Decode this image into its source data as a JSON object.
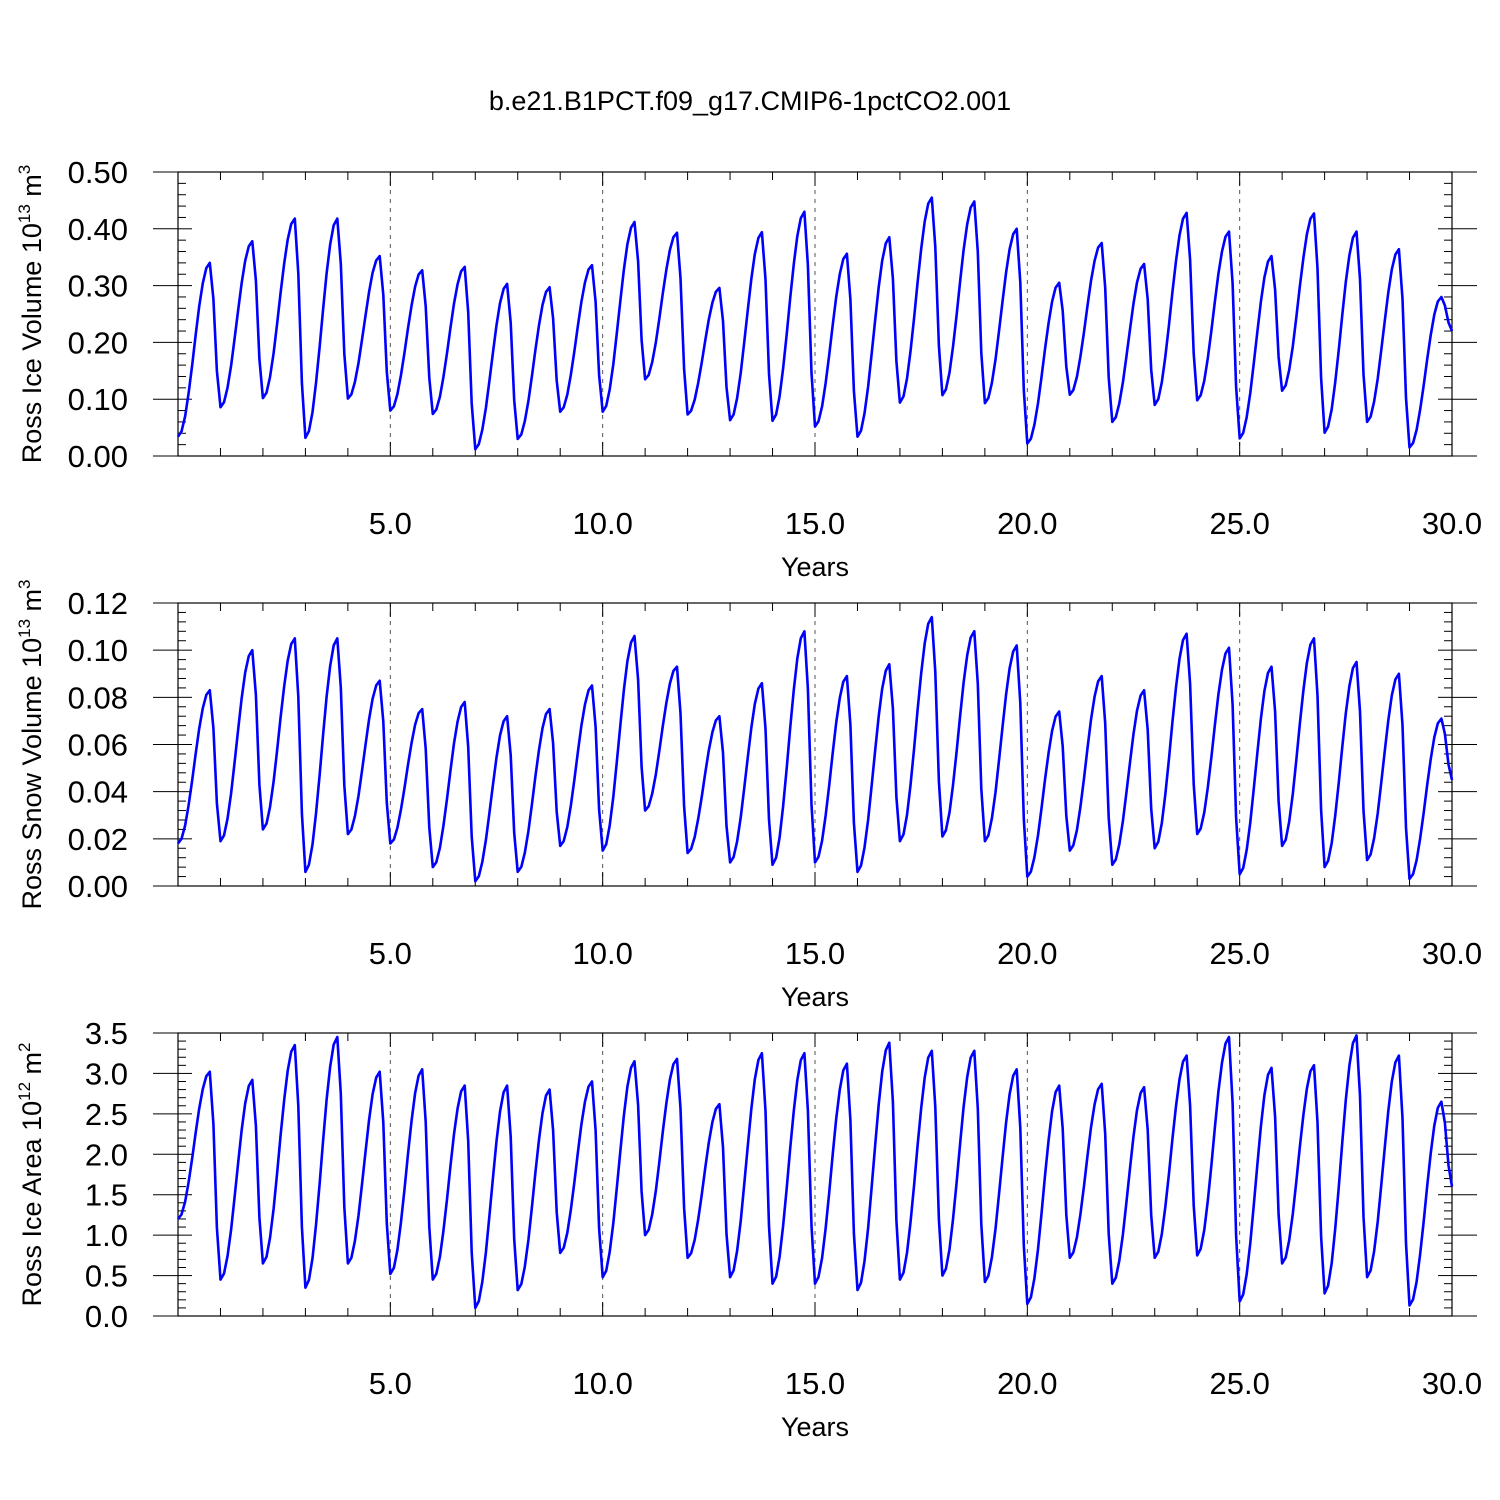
{
  "title": "b.e21.B1PCT.f09_g17.CMIP6-1pctCO2.001",
  "colors": {
    "line": "#0000ff",
    "axis": "#000000",
    "refline": "#555555"
  },
  "chart_data": [
    {
      "type": "line",
      "ylabel": "Ross Ice Volume 10",
      "ylabel_exp": "13",
      "ylabel_unit": " m",
      "ylabel_unit_exp": "3",
      "xlabel": "Years",
      "xlim": [
        0,
        30
      ],
      "ylim": [
        0,
        0.5
      ],
      "xticks": [
        5,
        10,
        15,
        20,
        25,
        30
      ],
      "xtick_labels": [
        "5.0",
        "10.0",
        "15.0",
        "20.0",
        "25.0",
        "30.0"
      ],
      "yticks": [
        0,
        0.1,
        0.2,
        0.3,
        0.4,
        0.5
      ],
      "ytick_labels": [
        "0.00",
        "0.10",
        "0.20",
        "0.30",
        "0.40",
        "0.50"
      ],
      "vlines": [
        5,
        10,
        15,
        20,
        25
      ],
      "grid": false,
      "series": [
        {
          "peaks": [
            0.34,
            0.378,
            0.418,
            0.418,
            0.352,
            0.327,
            0.333,
            0.303,
            0.297,
            0.336,
            0.412,
            0.393,
            0.296,
            0.394,
            0.43,
            0.356,
            0.385,
            0.455,
            0.448,
            0.4,
            0.305,
            0.375,
            0.338,
            0.428,
            0.395,
            0.352,
            0.427,
            0.395,
            0.364,
            0.28
          ],
          "troughs": [
            0.034,
            0.086,
            0.102,
            0.032,
            0.101,
            0.08,
            0.074,
            0.012,
            0.03,
            0.078,
            0.078,
            0.135,
            0.073,
            0.063,
            0.062,
            0.052,
            0.034,
            0.094,
            0.107,
            0.093,
            0.022,
            0.108,
            0.06,
            0.09,
            0.098,
            0.031,
            0.115,
            0.041,
            0.06,
            0.015,
            0.22
          ]
        }
      ]
    },
    {
      "type": "line",
      "ylabel": "Ross Snow Volume 10",
      "ylabel_exp": "13",
      "ylabel_unit": " m",
      "ylabel_unit_exp": "3",
      "xlabel": "Years",
      "xlim": [
        0,
        30
      ],
      "ylim": [
        0,
        0.12
      ],
      "xticks": [
        5,
        10,
        15,
        20,
        25,
        30
      ],
      "xtick_labels": [
        "5.0",
        "10.0",
        "15.0",
        "20.0",
        "25.0",
        "30.0"
      ],
      "yticks": [
        0,
        0.02,
        0.04,
        0.06,
        0.08,
        0.1,
        0.12
      ],
      "ytick_labels": [
        "0.00",
        "0.02",
        "0.04",
        "0.06",
        "0.08",
        "0.10",
        "0.12"
      ],
      "vlines": [
        5,
        10,
        15,
        20,
        25
      ],
      "grid": false,
      "series": [
        {
          "peaks": [
            0.083,
            0.1,
            0.105,
            0.105,
            0.087,
            0.075,
            0.078,
            0.072,
            0.075,
            0.085,
            0.106,
            0.093,
            0.072,
            0.086,
            0.108,
            0.089,
            0.094,
            0.114,
            0.108,
            0.102,
            0.074,
            0.089,
            0.083,
            0.107,
            0.101,
            0.093,
            0.105,
            0.095,
            0.09,
            0.071
          ],
          "troughs": [
            0.018,
            0.019,
            0.024,
            0.006,
            0.022,
            0.018,
            0.008,
            0.002,
            0.006,
            0.017,
            0.015,
            0.032,
            0.014,
            0.01,
            0.009,
            0.01,
            0.006,
            0.019,
            0.021,
            0.019,
            0.004,
            0.015,
            0.009,
            0.016,
            0.022,
            0.005,
            0.017,
            0.008,
            0.011,
            0.003,
            0.045
          ]
        }
      ]
    },
    {
      "type": "line",
      "ylabel": "Ross Ice Area 10",
      "ylabel_exp": "12",
      "ylabel_unit": " m",
      "ylabel_unit_exp": "2",
      "xlabel": "Years",
      "xlim": [
        0,
        30
      ],
      "ylim": [
        0,
        3.5
      ],
      "xticks": [
        5,
        10,
        15,
        20,
        25,
        30
      ],
      "xtick_labels": [
        "5.0",
        "10.0",
        "15.0",
        "20.0",
        "25.0",
        "30.0"
      ],
      "yticks": [
        0,
        0.5,
        1,
        1.5,
        2,
        2.5,
        3,
        3.5
      ],
      "ytick_labels": [
        "0.0",
        "0.5",
        "1.0",
        "1.5",
        "2.0",
        "2.5",
        "3.0",
        "3.5"
      ],
      "vlines": [
        5,
        10,
        15,
        20,
        25
      ],
      "grid": false,
      "series": [
        {
          "peaks": [
            3.02,
            2.92,
            3.35,
            3.45,
            3.02,
            3.05,
            2.85,
            2.85,
            2.8,
            2.9,
            3.15,
            3.18,
            2.62,
            3.25,
            3.25,
            3.12,
            3.38,
            3.28,
            3.28,
            3.05,
            2.85,
            2.87,
            2.83,
            3.22,
            3.45,
            3.07,
            3.1,
            3.47,
            3.22,
            2.65
          ],
          "troughs": [
            1.2,
            0.45,
            0.65,
            0.35,
            0.65,
            0.52,
            0.45,
            0.1,
            0.32,
            0.78,
            0.48,
            1.0,
            0.72,
            0.48,
            0.4,
            0.4,
            0.32,
            0.45,
            0.5,
            0.42,
            0.15,
            0.72,
            0.4,
            0.72,
            0.75,
            0.18,
            0.65,
            0.28,
            0.48,
            0.13,
            1.6
          ]
        }
      ]
    }
  ]
}
